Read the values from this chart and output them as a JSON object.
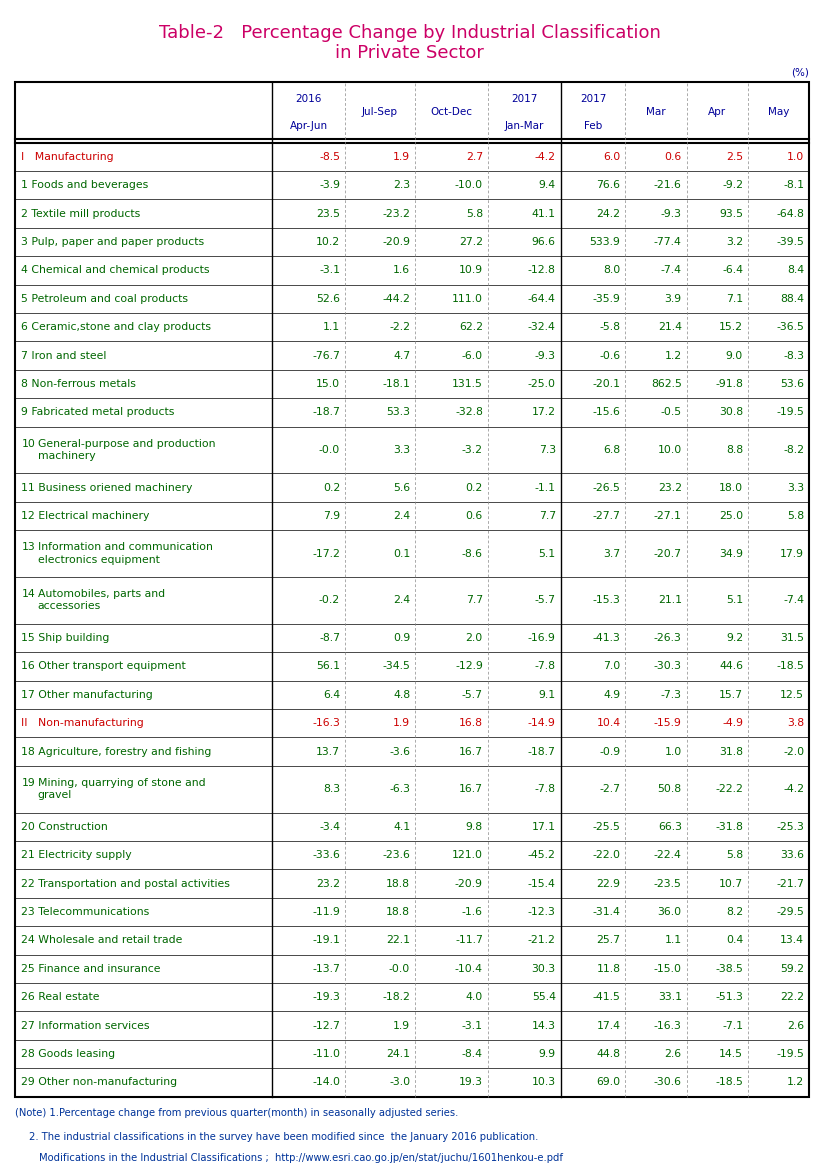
{
  "title_line1": "Table-2   Percentage Change by Industrial Classification",
  "title_line2": "in Private Sector",
  "title_color": "#cc0066",
  "unit_label": "(%)",
  "rows": [
    {
      "label": "I   Manufacturing",
      "num": "",
      "values": [
        "-8.5",
        "1.9",
        "2.7",
        "-4.2",
        "6.0",
        "0.6",
        "2.5",
        "1.0"
      ],
      "label_color": "#cc0000",
      "val_color": "#cc0000",
      "bold": false,
      "twolines": false
    },
    {
      "label": "1 Foods and beverages",
      "num": "",
      "values": [
        "-3.9",
        "2.3",
        "-10.0",
        "9.4",
        "76.6",
        "-21.6",
        "-9.2",
        "-8.1"
      ],
      "label_color": "#006600",
      "val_color": "#006600",
      "bold": false,
      "twolines": false
    },
    {
      "label": "2 Textile mill products",
      "num": "",
      "values": [
        "23.5",
        "-23.2",
        "5.8",
        "41.1",
        "24.2",
        "-9.3",
        "93.5",
        "-64.8"
      ],
      "label_color": "#006600",
      "val_color": "#006600",
      "bold": false,
      "twolines": false
    },
    {
      "label": "3 Pulp, paper and paper products",
      "num": "",
      "values": [
        "10.2",
        "-20.9",
        "27.2",
        "96.6",
        "533.9",
        "-77.4",
        "3.2",
        "-39.5"
      ],
      "label_color": "#006600",
      "val_color": "#006600",
      "bold": false,
      "twolines": false
    },
    {
      "label": "4 Chemical and chemical products",
      "num": "",
      "values": [
        "-3.1",
        "1.6",
        "10.9",
        "-12.8",
        "8.0",
        "-7.4",
        "-6.4",
        "8.4"
      ],
      "label_color": "#006600",
      "val_color": "#006600",
      "bold": false,
      "twolines": false
    },
    {
      "label": "5 Petroleum and coal products",
      "num": "",
      "values": [
        "52.6",
        "-44.2",
        "111.0",
        "-64.4",
        "-35.9",
        "3.9",
        "7.1",
        "88.4"
      ],
      "label_color": "#006600",
      "val_color": "#006600",
      "bold": false,
      "twolines": false
    },
    {
      "label": "6 Ceramic,stone and clay products",
      "num": "",
      "values": [
        "1.1",
        "-2.2",
        "62.2",
        "-32.4",
        "-5.8",
        "21.4",
        "15.2",
        "-36.5"
      ],
      "label_color": "#006600",
      "val_color": "#006600",
      "bold": false,
      "twolines": false
    },
    {
      "label": "7 Iron and steel",
      "num": "",
      "values": [
        "-76.7",
        "4.7",
        "-6.0",
        "-9.3",
        "-0.6",
        "1.2",
        "9.0",
        "-8.3"
      ],
      "label_color": "#006600",
      "val_color": "#006600",
      "bold": false,
      "twolines": false
    },
    {
      "label": "8 Non-ferrous metals",
      "num": "",
      "values": [
        "15.0",
        "-18.1",
        "131.5",
        "-25.0",
        "-20.1",
        "862.5",
        "-91.8",
        "53.6"
      ],
      "label_color": "#006600",
      "val_color": "#006600",
      "bold": false,
      "twolines": false
    },
    {
      "label": "9 Fabricated metal products",
      "num": "",
      "values": [
        "-18.7",
        "53.3",
        "-32.8",
        "17.2",
        "-15.6",
        "-0.5",
        "30.8",
        "-19.5"
      ],
      "label_color": "#006600",
      "val_color": "#006600",
      "bold": false,
      "twolines": false
    },
    {
      "label": "General-purpose and production\nmachinery",
      "num": "10",
      "values": [
        "-0.0",
        "3.3",
        "-3.2",
        "7.3",
        "6.8",
        "10.0",
        "8.8",
        "-8.2"
      ],
      "label_color": "#006600",
      "val_color": "#006600",
      "bold": false,
      "twolines": true
    },
    {
      "label": "11 Business oriened machinery",
      "num": "",
      "values": [
        "0.2",
        "5.6",
        "0.2",
        "-1.1",
        "-26.5",
        "23.2",
        "18.0",
        "3.3"
      ],
      "label_color": "#006600",
      "val_color": "#006600",
      "bold": false,
      "twolines": false
    },
    {
      "label": "12 Electrical machinery",
      "num": "",
      "values": [
        "7.9",
        "2.4",
        "0.6",
        "7.7",
        "-27.7",
        "-27.1",
        "25.0",
        "5.8"
      ],
      "label_color": "#006600",
      "val_color": "#006600",
      "bold": false,
      "twolines": false
    },
    {
      "label": "Information and communication\nelectronics equipment",
      "num": "13",
      "values": [
        "-17.2",
        "0.1",
        "-8.6",
        "5.1",
        "3.7",
        "-20.7",
        "34.9",
        "17.9"
      ],
      "label_color": "#006600",
      "val_color": "#006600",
      "bold": false,
      "twolines": true
    },
    {
      "label": "Automobiles, parts and\naccessories",
      "num": "14",
      "values": [
        "-0.2",
        "2.4",
        "7.7",
        "-5.7",
        "-15.3",
        "21.1",
        "5.1",
        "-7.4"
      ],
      "label_color": "#006600",
      "val_color": "#006600",
      "bold": false,
      "twolines": true
    },
    {
      "label": "15 Ship building",
      "num": "",
      "values": [
        "-8.7",
        "0.9",
        "2.0",
        "-16.9",
        "-41.3",
        "-26.3",
        "9.2",
        "31.5"
      ],
      "label_color": "#006600",
      "val_color": "#006600",
      "bold": false,
      "twolines": false
    },
    {
      "label": "16 Other transport equipment",
      "num": "",
      "values": [
        "56.1",
        "-34.5",
        "-12.9",
        "-7.8",
        "7.0",
        "-30.3",
        "44.6",
        "-18.5"
      ],
      "label_color": "#006600",
      "val_color": "#006600",
      "bold": false,
      "twolines": false
    },
    {
      "label": "17 Other manufacturing",
      "num": "",
      "values": [
        "6.4",
        "4.8",
        "-5.7",
        "9.1",
        "4.9",
        "-7.3",
        "15.7",
        "12.5"
      ],
      "label_color": "#006600",
      "val_color": "#006600",
      "bold": false,
      "twolines": false
    },
    {
      "label": "II   Non-manufacturing",
      "num": "",
      "values": [
        "-16.3",
        "1.9",
        "16.8",
        "-14.9",
        "10.4",
        "-15.9",
        "-4.9",
        "3.8"
      ],
      "label_color": "#cc0000",
      "val_color": "#cc0000",
      "bold": false,
      "twolines": false
    },
    {
      "label": "18 Agriculture, forestry and fishing",
      "num": "",
      "values": [
        "13.7",
        "-3.6",
        "16.7",
        "-18.7",
        "-0.9",
        "1.0",
        "31.8",
        "-2.0"
      ],
      "label_color": "#006600",
      "val_color": "#006600",
      "bold": false,
      "twolines": false
    },
    {
      "label": "Mining, quarrying of stone and\ngravel",
      "num": "19",
      "values": [
        "8.3",
        "-6.3",
        "16.7",
        "-7.8",
        "-2.7",
        "50.8",
        "-22.2",
        "-4.2"
      ],
      "label_color": "#006600",
      "val_color": "#006600",
      "bold": false,
      "twolines": true
    },
    {
      "label": "20 Construction",
      "num": "",
      "values": [
        "-3.4",
        "4.1",
        "9.8",
        "17.1",
        "-25.5",
        "66.3",
        "-31.8",
        "-25.3"
      ],
      "label_color": "#006600",
      "val_color": "#006600",
      "bold": false,
      "twolines": false
    },
    {
      "label": "21 Electricity supply",
      "num": "",
      "values": [
        "-33.6",
        "-23.6",
        "121.0",
        "-45.2",
        "-22.0",
        "-22.4",
        "5.8",
        "33.6"
      ],
      "label_color": "#006600",
      "val_color": "#006600",
      "bold": false,
      "twolines": false
    },
    {
      "label": "22 Transportation and postal activities",
      "num": "",
      "values": [
        "23.2",
        "18.8",
        "-20.9",
        "-15.4",
        "22.9",
        "-23.5",
        "10.7",
        "-21.7"
      ],
      "label_color": "#006600",
      "val_color": "#006600",
      "bold": false,
      "twolines": false
    },
    {
      "label": "23 Telecommunications",
      "num": "",
      "values": [
        "-11.9",
        "18.8",
        "-1.6",
        "-12.3",
        "-31.4",
        "36.0",
        "8.2",
        "-29.5"
      ],
      "label_color": "#006600",
      "val_color": "#006600",
      "bold": false,
      "twolines": false
    },
    {
      "label": "24 Wholesale and retail trade",
      "num": "",
      "values": [
        "-19.1",
        "22.1",
        "-11.7",
        "-21.2",
        "25.7",
        "1.1",
        "0.4",
        "13.4"
      ],
      "label_color": "#006600",
      "val_color": "#006600",
      "bold": false,
      "twolines": false
    },
    {
      "label": "25 Finance and insurance",
      "num": "",
      "values": [
        "-13.7",
        "-0.0",
        "-10.4",
        "30.3",
        "11.8",
        "-15.0",
        "-38.5",
        "59.2"
      ],
      "label_color": "#006600",
      "val_color": "#006600",
      "bold": false,
      "twolines": false
    },
    {
      "label": "26 Real estate",
      "num": "",
      "values": [
        "-19.3",
        "-18.2",
        "4.0",
        "55.4",
        "-41.5",
        "33.1",
        "-51.3",
        "22.2"
      ],
      "label_color": "#006600",
      "val_color": "#006600",
      "bold": false,
      "twolines": false
    },
    {
      "label": "27 Information services",
      "num": "",
      "values": [
        "-12.7",
        "1.9",
        "-3.1",
        "14.3",
        "17.4",
        "-16.3",
        "-7.1",
        "2.6"
      ],
      "label_color": "#006600",
      "val_color": "#006600",
      "bold": false,
      "twolines": false
    },
    {
      "label": "28 Goods leasing",
      "num": "",
      "values": [
        "-11.0",
        "24.1",
        "-8.4",
        "9.9",
        "44.8",
        "2.6",
        "14.5",
        "-19.5"
      ],
      "label_color": "#006600",
      "val_color": "#006600",
      "bold": false,
      "twolines": false
    },
    {
      "label": "29 Other non-manufacturing",
      "num": "",
      "values": [
        "-14.0",
        "-3.0",
        "19.3",
        "10.3",
        "69.0",
        "-30.6",
        "-18.5",
        "1.2"
      ],
      "label_color": "#006600",
      "val_color": "#006600",
      "bold": false,
      "twolines": false
    }
  ],
  "col_header_labels": [
    "2016\nApr-Jun",
    "Jul-Sep",
    "Oct-Dec",
    "2017\nJan-Mar",
    "2017\nFeb",
    "Mar",
    "Apr",
    "May"
  ],
  "note1": "(Note) 1.Percentage change from previous quarter(month) in seasonally adjusted series.",
  "note2": "2. The industrial classifications in the survey have been modified since  the January 2016 publication.",
  "note3": "Modifications in the Industrial Classifications ;  http://www.esri.cao.go.jp/en/stat/juchu/1601henkou-e.pdf",
  "note_color": "#003399",
  "header_color": "#000099",
  "inner_line_color": "#888888"
}
